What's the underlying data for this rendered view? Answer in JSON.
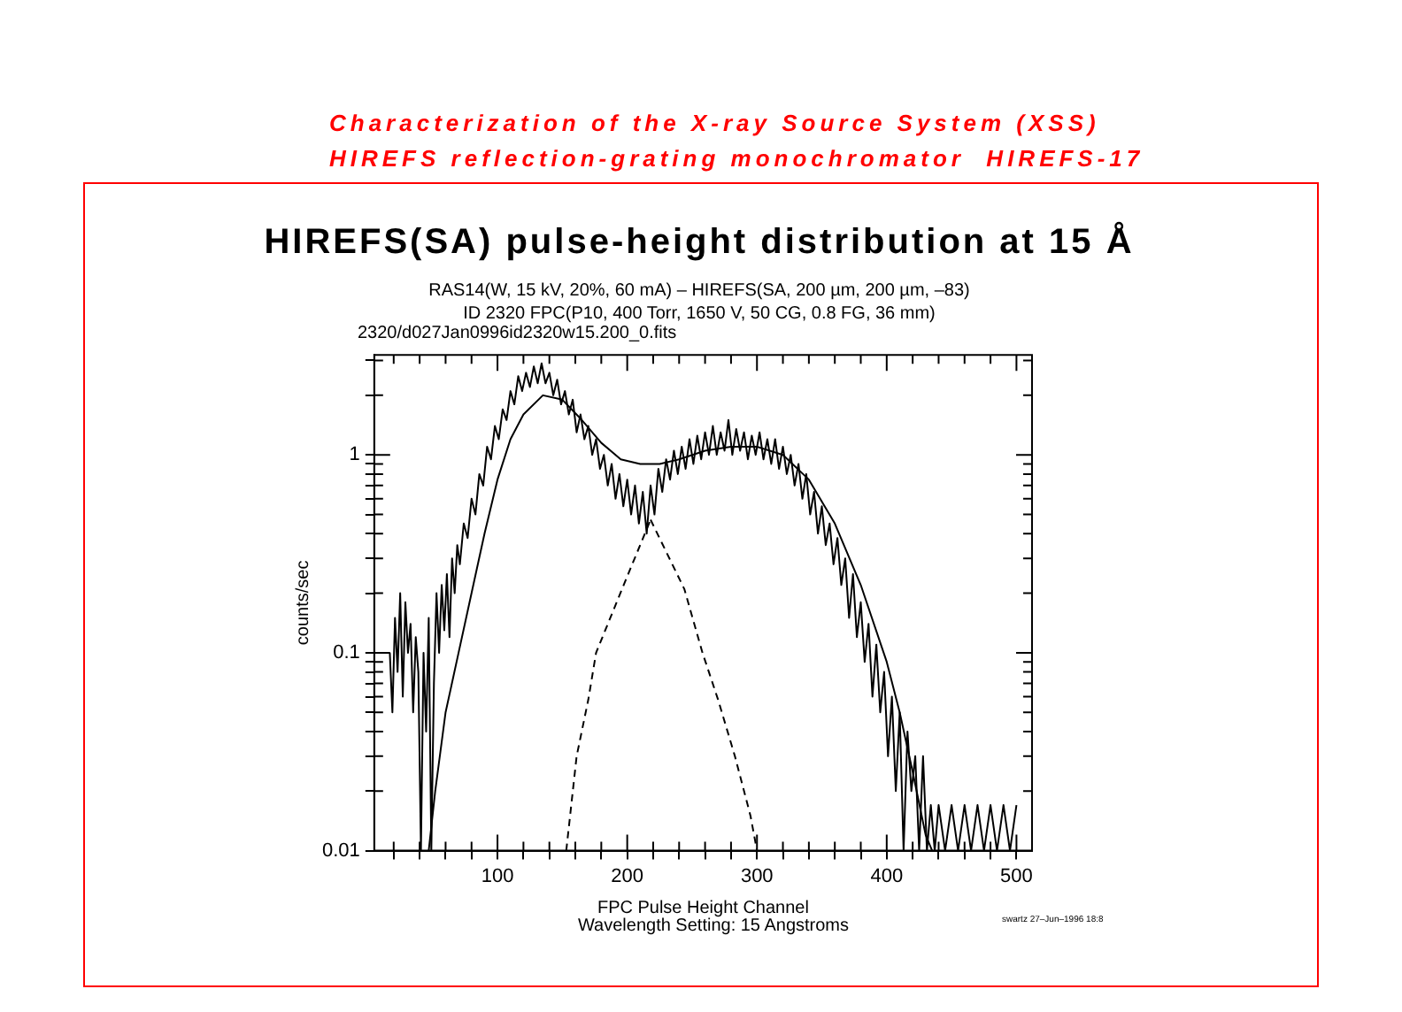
{
  "chart_data": {
    "type": "line",
    "title": "HIREFS(SA) pulse-height distribution at 15 Å",
    "subtitle": "RAS14(W, 15 kV, 20%, 60 mA) – HIREFS(SA, 200 µm, 200 µm, –83)\nID 2320 FPC(P10, 400 Torr, 1650 V, 50 CG, 0.8 FG, 36 mm)",
    "xlabel": "FPC Pulse Height Channel",
    "ylabel": "counts/sec",
    "annotations": [
      "Characterization of the X-ray Source System (XSS)",
      "HIREFS reflection-grating monochromator  HIREFS-17",
      "2320/d027Jan0996id2320w15.200_0.fits",
      "Wavelength Setting: 15 Angstroms",
      "swartz 27–Jun–1996 18:8"
    ],
    "log": "y",
    "grid": false,
    "legend": false,
    "marker": "none",
    "xlim": [
      5,
      512
    ],
    "ylim": [
      0.01,
      3.2
    ],
    "xticks": [
      {
        "value": 20,
        "label": null
      },
      {
        "value": 40,
        "label": null
      },
      {
        "value": 60,
        "label": null
      },
      {
        "value": 80,
        "label": null
      },
      100,
      {
        "value": 120,
        "label": null
      },
      {
        "value": 140,
        "label": null
      },
      {
        "value": 160,
        "label": null
      },
      {
        "value": 180,
        "label": null
      },
      200,
      {
        "value": 220,
        "label": null
      },
      {
        "value": 240,
        "label": null
      },
      {
        "value": 260,
        "label": null
      },
      {
        "value": 280,
        "label": null
      },
      300,
      {
        "value": 320,
        "label": null
      },
      {
        "value": 340,
        "label": null
      },
      {
        "value": 360,
        "label": null
      },
      {
        "value": 380,
        "label": null
      },
      400,
      {
        "value": 420,
        "label": null
      },
      {
        "value": 440,
        "label": null
      },
      {
        "value": 460,
        "label": null
      },
      {
        "value": 480,
        "label": null
      },
      500
    ],
    "yticks": [
      0.01,
      {
        "value": 0.02,
        "label": null
      },
      {
        "value": 0.03,
        "label": null
      },
      {
        "value": 0.04,
        "label": null
      },
      {
        "value": 0.05,
        "label": null
      },
      {
        "value": 0.06,
        "label": null
      },
      {
        "value": 0.07,
        "label": null
      },
      {
        "value": 0.08,
        "label": null
      },
      {
        "value": 0.09,
        "label": null
      },
      0.1,
      {
        "value": 0.2,
        "label": null
      },
      {
        "value": 0.3,
        "label": null
      },
      {
        "value": 0.4,
        "label": null
      },
      {
        "value": 0.5,
        "label": null
      },
      {
        "value": 0.6,
        "label": null
      },
      {
        "value": 0.7,
        "label": null
      },
      {
        "value": 0.8,
        "label": null
      },
      {
        "value": 0.9,
        "label": null
      },
      1,
      {
        "value": 2,
        "label": null
      },
      {
        "value": 3,
        "label": null
      }
    ],
    "series": [
      {
        "color": "#000000",
        "line_style": "solid",
        "x": [
          17,
          19,
          21,
          23,
          25,
          27,
          29,
          31,
          33,
          35,
          37,
          39,
          41,
          43,
          45,
          47,
          49,
          51,
          53,
          55,
          57,
          59,
          61,
          63,
          65,
          67,
          69,
          71,
          74,
          77,
          80,
          83,
          86,
          89,
          92,
          95,
          98,
          101,
          104,
          107,
          110,
          113,
          116,
          119,
          122,
          125,
          128,
          131,
          134,
          137,
          140,
          143,
          146,
          149,
          152,
          155,
          158,
          161,
          164,
          167,
          170,
          173,
          176,
          179,
          182,
          185,
          188,
          191,
          194,
          197,
          200,
          203,
          206,
          209,
          212,
          215,
          218,
          221,
          224,
          227,
          230,
          233,
          236,
          239,
          242,
          245,
          248,
          251,
          254,
          257,
          260,
          263,
          266,
          269,
          272,
          275,
          278,
          281,
          284,
          287,
          290,
          293,
          296,
          299,
          302,
          305,
          308,
          311,
          314,
          317,
          320,
          323,
          326,
          329,
          332,
          335,
          338,
          341,
          344,
          347,
          350,
          353,
          356,
          359,
          362,
          365,
          368,
          371,
          374,
          377,
          380,
          383,
          386,
          389,
          392,
          395,
          398,
          401,
          404,
          407,
          410,
          413,
          416,
          419,
          422,
          425,
          428,
          431,
          434,
          437,
          440,
          445,
          450,
          455,
          460,
          465,
          470,
          475,
          480,
          485,
          490,
          495,
          500
        ],
        "values": [
          0.1,
          0.05,
          0.15,
          0.08,
          0.2,
          0.06,
          0.18,
          0.1,
          0.14,
          0.05,
          0.12,
          0.08,
          0.01,
          0.1,
          0.04,
          0.15,
          0.01,
          0.07,
          0.2,
          0.1,
          0.22,
          0.13,
          0.25,
          0.12,
          0.3,
          0.2,
          0.35,
          0.28,
          0.45,
          0.38,
          0.6,
          0.5,
          0.8,
          0.7,
          1.1,
          0.95,
          1.4,
          1.2,
          1.7,
          1.5,
          2.1,
          1.8,
          2.5,
          2.1,
          2.6,
          2.2,
          2.8,
          2.3,
          2.9,
          2.3,
          2.6,
          2,
          2.4,
          1.8,
          2.1,
          1.6,
          1.9,
          1.3,
          1.6,
          1.2,
          1.4,
          1,
          1.2,
          0.85,
          1,
          0.7,
          0.9,
          0.6,
          0.8,
          0.55,
          0.75,
          0.5,
          0.7,
          0.45,
          0.65,
          0.4,
          0.7,
          0.5,
          0.85,
          0.65,
          0.95,
          0.75,
          1.05,
          0.8,
          1.1,
          0.85,
          1.2,
          0.9,
          1.25,
          0.95,
          1.3,
          1,
          1.4,
          1,
          1.3,
          1.05,
          1.5,
          1,
          1.35,
          1.05,
          1.3,
          0.95,
          1.25,
          1,
          1.3,
          0.95,
          1.2,
          0.9,
          1.2,
          0.85,
          1.1,
          0.8,
          1,
          0.7,
          0.9,
          0.6,
          0.8,
          0.5,
          0.65,
          0.4,
          0.55,
          0.35,
          0.45,
          0.28,
          0.38,
          0.22,
          0.3,
          0.15,
          0.25,
          0.12,
          0.18,
          0.09,
          0.14,
          0.06,
          0.11,
          0.05,
          0.08,
          0.03,
          0.06,
          0.02,
          0.05,
          0.01,
          0.04,
          0.02,
          0.03,
          0.01,
          0.03,
          0.01,
          0.017,
          0.01,
          0.017,
          0.01,
          0.017,
          0.01,
          0.017,
          0.01,
          0.017,
          0.01,
          0.017,
          0.01,
          0.017,
          0.01,
          0.017
        ]
      },
      {
        "color": "#000000",
        "line_style": "solid",
        "x": [
          47,
          52,
          60,
          70,
          80,
          90,
          100,
          110,
          120,
          135,
          150,
          165,
          180,
          195,
          210,
          225,
          240,
          260,
          280,
          300,
          320,
          340,
          360,
          380,
          400,
          410,
          420,
          430,
          435
        ],
        "values": [
          0.01,
          0.02,
          0.05,
          0.1,
          0.2,
          0.4,
          0.75,
          1.2,
          1.6,
          2,
          1.9,
          1.5,
          1.15,
          0.95,
          0.9,
          0.9,
          0.95,
          1.05,
          1.1,
          1.1,
          1,
          0.75,
          0.45,
          0.22,
          0.09,
          0.05,
          0.025,
          0.012,
          0.01
        ]
      },
      {
        "color": "#000000",
        "line_style": "dashed",
        "x": [
          218,
          244,
          258,
          270,
          283,
          295,
          300
        ],
        "values": [
          0.47,
          0.21,
          0.1,
          0.058,
          0.03,
          0.015,
          0.01
        ]
      },
      {
        "color": "#000000",
        "line_style": "dashed",
        "x": [
          153,
          161,
          170,
          176,
          196,
          218
        ],
        "values": [
          0.01,
          0.03,
          0.058,
          0.1,
          0.21,
          0.47
        ]
      }
    ]
  }
}
